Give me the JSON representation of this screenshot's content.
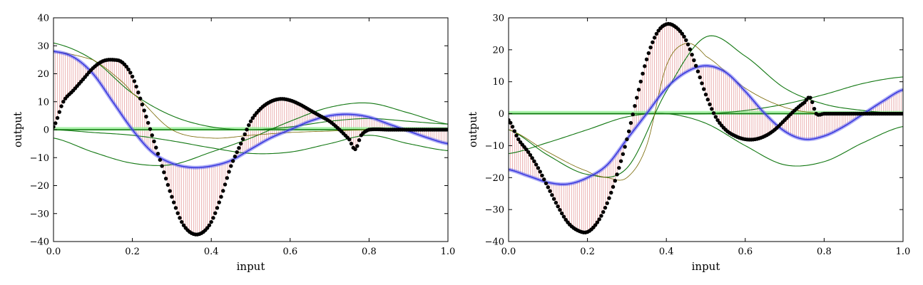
{
  "chart_data": [
    {
      "type": "line",
      "xlabel": "input",
      "ylabel": "output",
      "xlim": [
        0.0,
        1.0
      ],
      "ylim": [
        -40,
        40
      ],
      "xticks": [
        "0.0",
        "0.2",
        "0.4",
        "0.6",
        "0.8",
        "1.0"
      ],
      "yticks": [
        "−40",
        "−30",
        "−20",
        "−10",
        "0",
        "10",
        "20",
        "30",
        "40"
      ],
      "grid": false,
      "legend": "none",
      "colors": {
        "target": "#000000",
        "prediction": "#5555ee",
        "components": "#117711",
        "residual": "#cc3333",
        "baseline": "#88ee88"
      },
      "series": [
        {
          "role": "target-points",
          "x": [
            0.0,
            0.025,
            0.05,
            0.075,
            0.1,
            0.125,
            0.15,
            0.175,
            0.2,
            0.225,
            0.25,
            0.275,
            0.3,
            0.325,
            0.35,
            0.375,
            0.4,
            0.425,
            0.45,
            0.475,
            0.5,
            0.525,
            0.55,
            0.575,
            0.6,
            0.625,
            0.65,
            0.675,
            0.7,
            0.725,
            0.75,
            0.765,
            0.78,
            0.8,
            0.85,
            0.9,
            0.95,
            1.0
          ],
          "y": [
            1,
            10,
            14,
            18,
            22,
            24.5,
            25,
            24,
            19,
            9,
            -2,
            -13,
            -24,
            -33,
            -37,
            -37,
            -33,
            -24,
            -13,
            -5,
            3,
            7.5,
            10,
            11,
            10.5,
            9,
            7,
            5,
            3,
            0,
            -3.5,
            -7,
            -2,
            0,
            0,
            0,
            0,
            0
          ]
        },
        {
          "role": "prediction",
          "x": [
            0.0,
            0.05,
            0.1,
            0.15,
            0.2,
            0.25,
            0.3,
            0.35,
            0.4,
            0.45,
            0.5,
            0.55,
            0.6,
            0.65,
            0.7,
            0.75,
            0.8,
            0.85,
            0.9,
            0.95,
            1.0
          ],
          "y": [
            28,
            26,
            20,
            10,
            0,
            -8,
            -12,
            -13.5,
            -13,
            -11,
            -7,
            -3,
            0,
            3,
            5,
            5.5,
            4.5,
            2,
            -0.5,
            -3,
            -5
          ]
        },
        {
          "role": "component-1",
          "x": [
            0.0,
            0.1,
            0.2,
            0.3,
            0.4,
            0.5,
            0.6,
            0.7,
            0.8,
            0.9,
            1.0
          ],
          "y": [
            31,
            25,
            13,
            5,
            1,
            0,
            1,
            3,
            4,
            3,
            2
          ]
        },
        {
          "role": "component-2",
          "x": [
            0.0,
            0.1,
            0.2,
            0.3,
            0.4,
            0.5,
            0.6,
            0.7,
            0.8,
            0.9,
            1.0
          ],
          "y": [
            -3,
            -8,
            -12,
            -12.5,
            -8,
            -3,
            3,
            8,
            9.5,
            6,
            2
          ]
        },
        {
          "role": "component-3",
          "x": [
            0.0,
            0.1,
            0.2,
            0.3,
            0.4,
            0.5,
            0.6,
            0.7,
            0.8,
            0.9,
            1.0
          ],
          "y": [
            0,
            -1,
            -2,
            -4,
            -6.5,
            -8.5,
            -8,
            -5,
            -2,
            -5,
            -7.5
          ]
        },
        {
          "role": "component-4",
          "x": [
            0.0,
            0.1,
            0.15,
            0.2,
            0.3,
            0.4,
            0.5,
            0.6,
            0.7,
            0.8,
            1.0
          ],
          "y": [
            28,
            25,
            20,
            13,
            0,
            -3,
            -2,
            -1,
            -0.5,
            0,
            0
          ]
        },
        {
          "role": "baseline",
          "x": [
            0.0,
            1.0
          ],
          "y": [
            0.3,
            0.3
          ]
        }
      ]
    },
    {
      "type": "line",
      "xlabel": "input",
      "ylabel": "output",
      "xlim": [
        0.0,
        1.0
      ],
      "ylim": [
        -40,
        30
      ],
      "xticks": [
        "0.0",
        "0.2",
        "0.4",
        "0.6",
        "0.8",
        "1.0"
      ],
      "yticks": [
        "−40",
        "−30",
        "−20",
        "−10",
        "0",
        "10",
        "20",
        "30"
      ],
      "grid": false,
      "legend": "none",
      "colors": {
        "target": "#000000",
        "prediction": "#5555ee",
        "components": "#117711",
        "residual": "#cc3333",
        "baseline": "#88ee88"
      },
      "series": [
        {
          "role": "target-points",
          "x": [
            0.0,
            0.025,
            0.05,
            0.075,
            0.1,
            0.125,
            0.15,
            0.175,
            0.2,
            0.225,
            0.25,
            0.275,
            0.3,
            0.325,
            0.35,
            0.375,
            0.4,
            0.425,
            0.45,
            0.475,
            0.5,
            0.525,
            0.55,
            0.575,
            0.6,
            0.625,
            0.65,
            0.675,
            0.7,
            0.725,
            0.75,
            0.765,
            0.78,
            0.8,
            0.85,
            0.9,
            0.95,
            1.0
          ],
          "y": [
            -2,
            -8,
            -12,
            -17,
            -23,
            -29,
            -34,
            -36.5,
            -37,
            -34,
            -28,
            -19,
            -8,
            5,
            17,
            25,
            28,
            27,
            23,
            15,
            6,
            -1,
            -5,
            -7,
            -8,
            -8,
            -7,
            -5,
            -2,
            1,
            3.5,
            5,
            0,
            0,
            0,
            0,
            0,
            0
          ]
        },
        {
          "role": "prediction",
          "x": [
            0.0,
            0.05,
            0.1,
            0.15,
            0.2,
            0.25,
            0.3,
            0.35,
            0.4,
            0.45,
            0.5,
            0.55,
            0.6,
            0.65,
            0.7,
            0.75,
            0.8,
            0.85,
            0.9,
            0.95,
            1.0
          ],
          "y": [
            -17.5,
            -19.5,
            -21.5,
            -22,
            -20,
            -16,
            -8,
            0,
            8,
            13,
            15,
            13,
            7,
            0,
            -5.5,
            -8,
            -7,
            -4,
            0,
            4,
            7.5
          ]
        },
        {
          "role": "component-1",
          "x": [
            0.0,
            0.1,
            0.2,
            0.3,
            0.4,
            0.5,
            0.6,
            0.7,
            0.8,
            0.9,
            1.0
          ],
          "y": [
            -5,
            -13,
            -19,
            -17,
            7,
            24,
            18,
            8,
            3,
            1,
            0
          ]
        },
        {
          "role": "component-2",
          "x": [
            0.0,
            0.1,
            0.2,
            0.3,
            0.4,
            0.5,
            0.6,
            0.7,
            0.8,
            0.9,
            1.0
          ],
          "y": [
            -12.5,
            -9,
            -5,
            -1,
            0,
            -3,
            -10,
            -16,
            -15,
            -9,
            -4
          ]
        },
        {
          "role": "component-3",
          "x": [
            0.0,
            0.1,
            0.2,
            0.3,
            0.4,
            0.5,
            0.6,
            0.7,
            0.8,
            0.9,
            1.0
          ],
          "y": [
            0,
            0,
            0,
            0,
            0,
            0,
            1,
            3,
            6,
            9.5,
            11.5
          ]
        },
        {
          "role": "component-4",
          "x": [
            0.0,
            0.1,
            0.2,
            0.25,
            0.3,
            0.35,
            0.4,
            0.45,
            0.5,
            0.6,
            0.7,
            0.8,
            1.0
          ],
          "y": [
            -5,
            -12,
            -18,
            -20,
            -20,
            -10,
            15,
            22,
            18,
            8,
            2,
            0,
            0
          ]
        },
        {
          "role": "baseline",
          "x": [
            0.0,
            1.0
          ],
          "y": [
            0.3,
            0.3
          ]
        }
      ]
    }
  ]
}
